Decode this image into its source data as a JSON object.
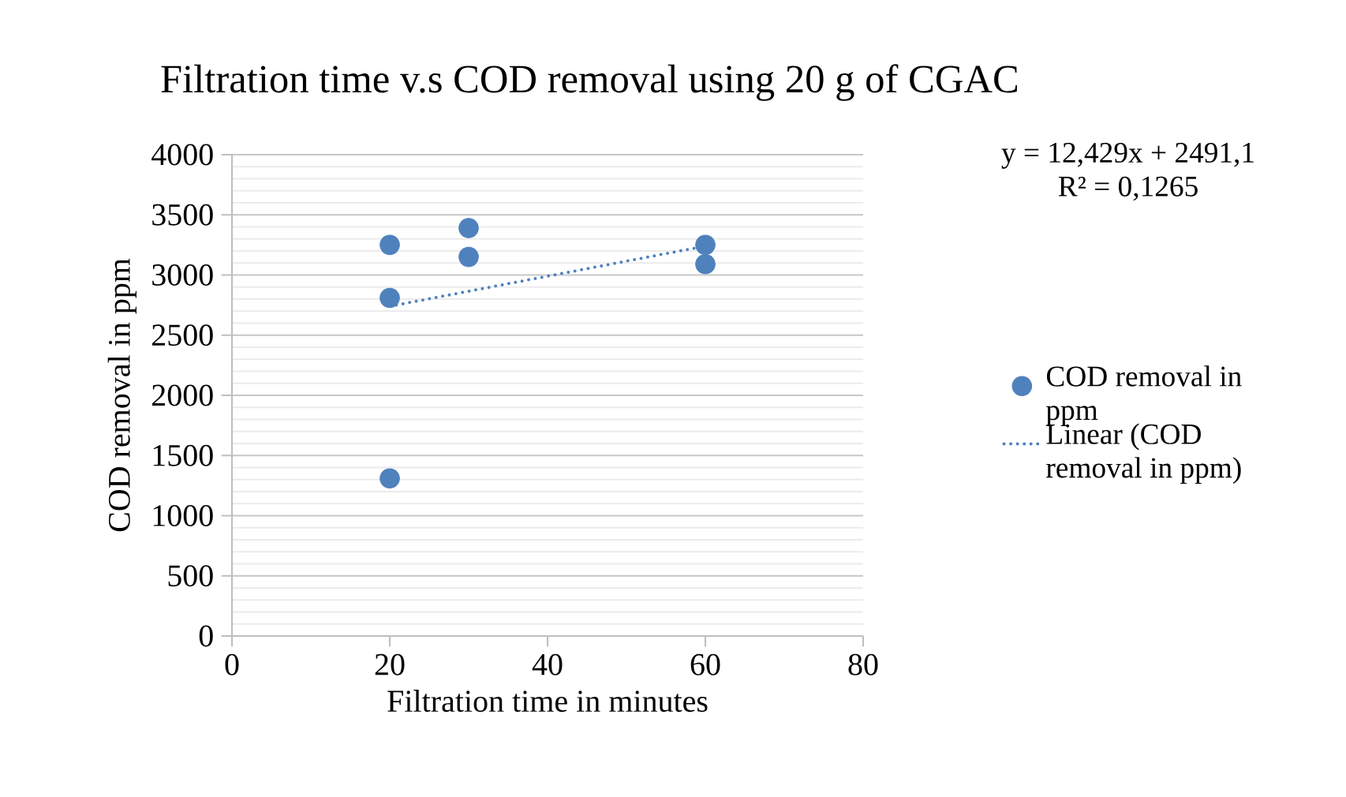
{
  "chart_data": {
    "type": "scatter",
    "title": "Filtration time v.s COD removal using 20 g of CGAC",
    "xlabel": "Filtration time in minutes",
    "ylabel": "COD removal in ppm",
    "xlim": [
      0,
      80
    ],
    "xticks": [
      0,
      20,
      40,
      60,
      80
    ],
    "ylim": [
      0,
      4000
    ],
    "yticks": [
      0,
      500,
      1000,
      1500,
      2000,
      2500,
      3000,
      3500,
      4000
    ],
    "grid": "y",
    "legend": "right",
    "series": [
      {
        "name": "COD removal in ppm",
        "marker": "circle",
        "color": "#4f81bd",
        "x": [
          20,
          20,
          20,
          30,
          30,
          60,
          60
        ],
        "values": [
          3250,
          2810,
          1310,
          3390,
          3150,
          3250,
          3090
        ]
      },
      {
        "name": "Linear (COD removal in ppm)",
        "type": "line",
        "marker": "none",
        "line_style": "dotted",
        "color": "#4f81bd",
        "x": [
          20,
          60
        ],
        "values": [
          2740,
          3240
        ]
      }
    ],
    "annotations": [
      "y = 12,429x + 2491,1",
      "R² = 0,1265"
    ]
  }
}
